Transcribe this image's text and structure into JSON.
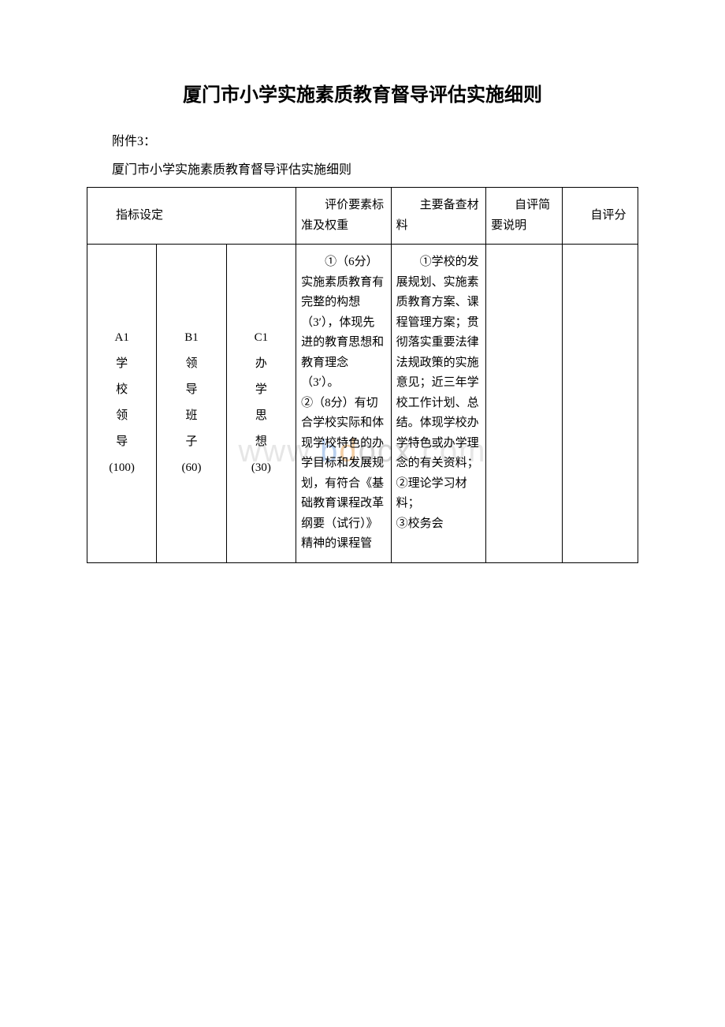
{
  "title": "厦门市小学实施素质教育督导评估实施细则",
  "attachment_label": "附件3：",
  "subtitle": "厦门市小学实施素质教育督导评估实施细则",
  "watermark": {
    "prefix": "www.",
    "d1": "b",
    "d2": "d",
    "d3": "ocx",
    "suffix": ".com"
  },
  "table": {
    "headers": {
      "col1": "指标设定",
      "col4": "评价要素标准及权重",
      "col5": "主要备查材料",
      "col6": "自评简要说明",
      "col7": "自评分"
    },
    "row": {
      "a": "A1\n学\n校\n领\n导\n(100)",
      "b": "B1\n领\n导\n班\n子\n(60)",
      "c": "C1\n办\n学\n思\n想\n(30)",
      "d": "①（6分）实施素质教育有完整的构想（3′），体现先进的教育思想和教育理念（3′）。\n②（8分）有切合学校实际和体现学校特色的办学目标和发展规划，有符合《基础教育课程改革纲要（试行）》精神的课程管",
      "e": "①学校的发展规划、实施素质教育方案、课程管理方案；贯彻落实重要法律法规政策的实施意见；近三年学校工作计划、总结。体现学校办学特色或办学理念的有关资料；\n②理论学习材料；\n③校务会",
      "f": "",
      "g": ""
    }
  },
  "colors": {
    "text": "#000000",
    "border": "#000000",
    "background": "#ffffff"
  }
}
